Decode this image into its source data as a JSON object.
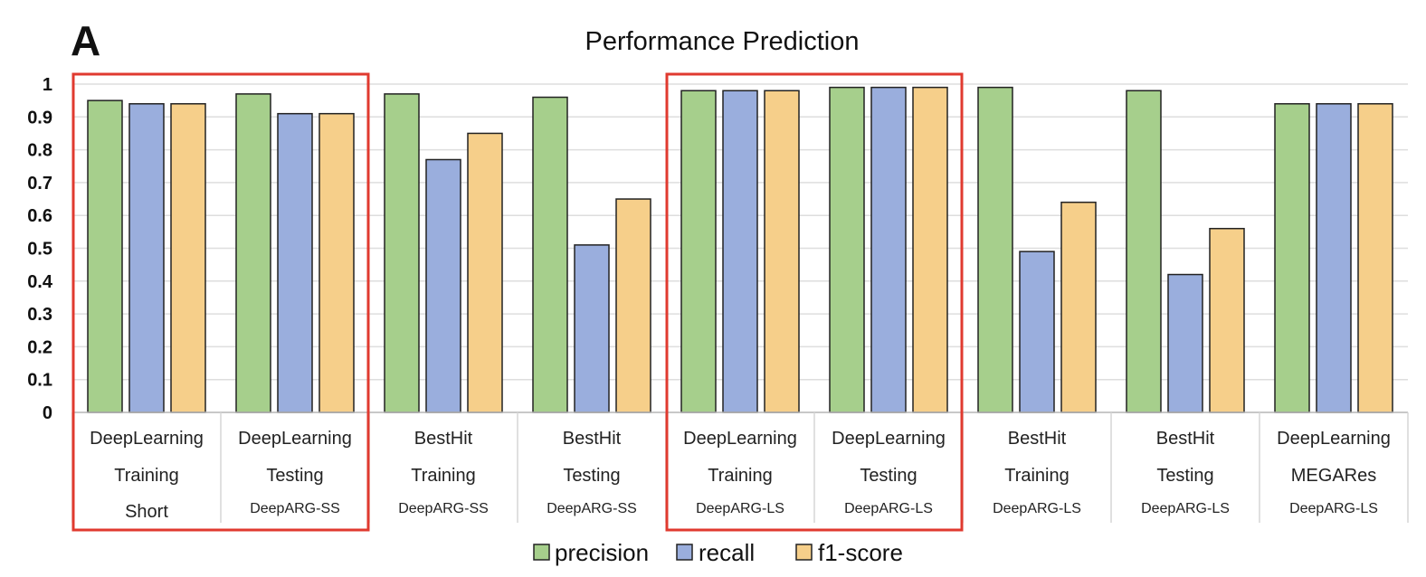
{
  "panel_label": "A",
  "chart_data": {
    "type": "bar",
    "title": "Performance Prediction",
    "xlabel": "",
    "ylabel": "",
    "ylim": [
      0,
      1
    ],
    "yticks": [
      "0",
      "0.1",
      "0.2",
      "0.3",
      "0.4",
      "0.5",
      "0.6",
      "0.7",
      "0.8",
      "0.9",
      "1"
    ],
    "grid": true,
    "legend_position": "bottom",
    "categories": [
      {
        "line1": "DeepLearning",
        "line2": "Training",
        "line3": "Short"
      },
      {
        "line1": "DeepLearning",
        "line2": "Testing",
        "line3": "DeepARG-SS"
      },
      {
        "line1": "BestHit",
        "line2": "Training",
        "line3": "DeepARG-SS"
      },
      {
        "line1": "BestHit",
        "line2": "Testing",
        "line3": "DeepARG-SS"
      },
      {
        "line1": "DeepLearning",
        "line2": "Training",
        "line3": "DeepARG-LS"
      },
      {
        "line1": "DeepLearning",
        "line2": "Testing",
        "line3": "DeepARG-LS"
      },
      {
        "line1": "BestHit",
        "line2": "Training",
        "line3": "DeepARG-LS"
      },
      {
        "line1": "BestHit",
        "line2": "Testing",
        "line3": "DeepARG-LS"
      },
      {
        "line1": "DeepLearning",
        "line2": "MEGARes",
        "line3": "DeepARG-LS"
      }
    ],
    "series": [
      {
        "name": "precision",
        "color": "#a6cf8c",
        "values": [
          0.95,
          0.97,
          0.97,
          0.96,
          0.98,
          0.99,
          0.99,
          0.98,
          0.94
        ]
      },
      {
        "name": "recall",
        "color": "#9aaedd",
        "values": [
          0.94,
          0.91,
          0.77,
          0.51,
          0.98,
          0.99,
          0.49,
          0.42,
          0.94
        ]
      },
      {
        "name": "f1-score",
        "color": "#f6cf8a",
        "values": [
          0.94,
          0.91,
          0.85,
          0.65,
          0.98,
          0.99,
          0.64,
          0.56,
          0.94
        ]
      }
    ],
    "highlight_groups": [
      [
        0,
        1
      ],
      [
        4,
        5
      ]
    ],
    "highlight_color": "#e03a2f"
  }
}
